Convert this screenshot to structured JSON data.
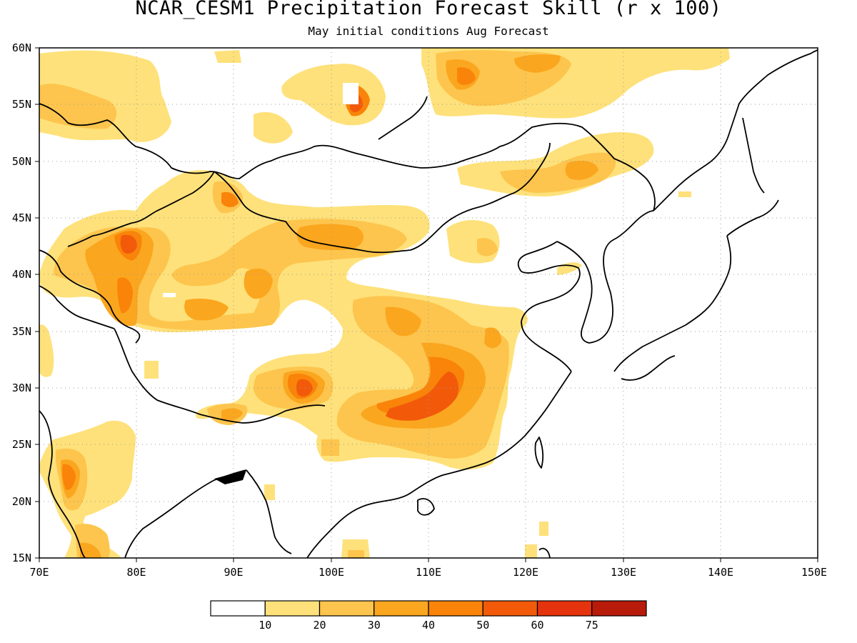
{
  "title": "NCAR_CESM1 Precipitation Forecast Skill (r x 100)",
  "subtitle": "May initial conditions  Aug Forecast",
  "lat_ticks": [
    "15N",
    "20N",
    "25N",
    "30N",
    "35N",
    "40N",
    "45N",
    "50N",
    "55N",
    "60N"
  ],
  "lon_ticks": [
    "70E",
    "80E",
    "90E",
    "100E",
    "110E",
    "120E",
    "130E",
    "140E",
    "150E"
  ],
  "colorbar": {
    "labels": [
      "10",
      "20",
      "30",
      "40",
      "50",
      "60",
      "75"
    ],
    "colors": [
      "#ffffff",
      "#fee17a",
      "#fdc54d",
      "#fba61f",
      "#f98409",
      "#f25a0a",
      "#e4330d",
      "#b81b0a"
    ]
  }
}
